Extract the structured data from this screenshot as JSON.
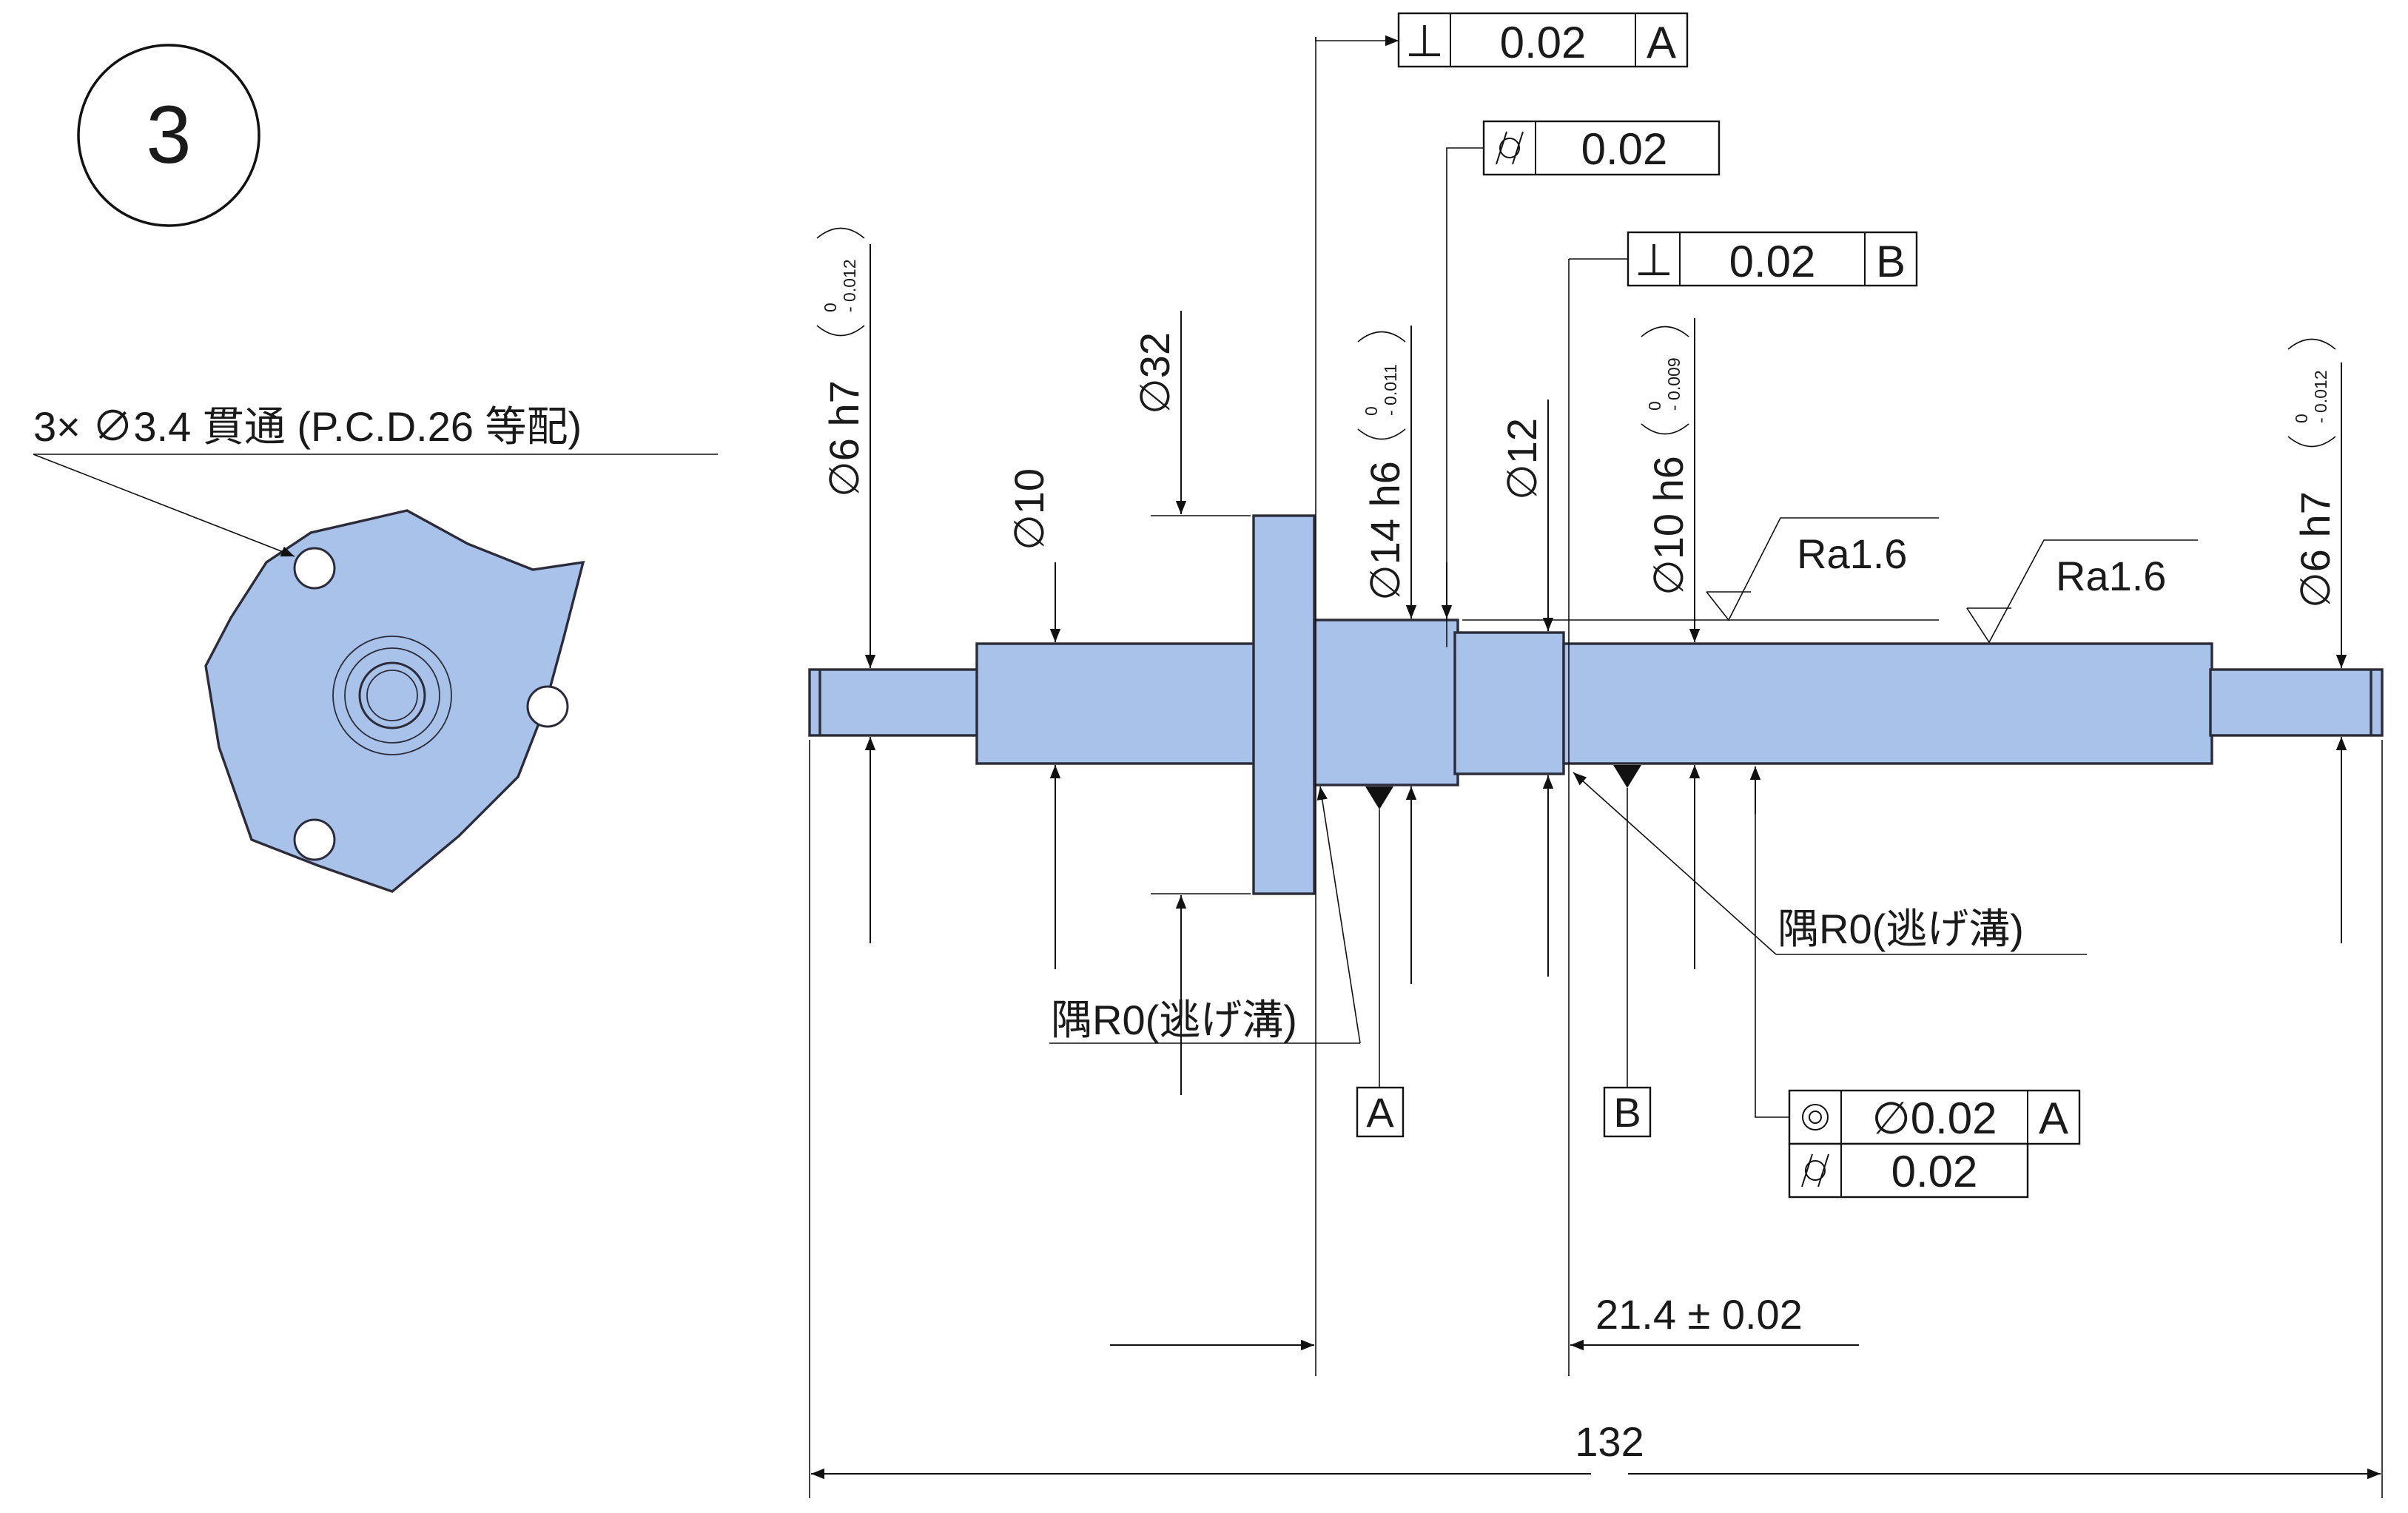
{
  "view_number": "3",
  "front_view": {
    "hole_note": "3× ∅3.4 貫通 (P.C.D.26 等配)"
  },
  "dimensions": {
    "d6_left": "∅6 h7",
    "d6_left_tol_upper": "0",
    "d6_left_tol_lower": "- 0.012",
    "d10": "∅10",
    "d32": "∅32",
    "d14": "∅14 h6",
    "d14_tol_upper": "0",
    "d14_tol_lower": "- 0.011",
    "d12": "∅12",
    "d10b": "∅10 h6",
    "d10b_tol_upper": "0",
    "d10b_tol_lower": "- 0.009",
    "d6_right": "∅6 h7",
    "d6_right_tol_upper": "0",
    "d6_right_tol_lower": "- 0.012",
    "spacing": "21.4 ± 0.02",
    "total_length": "132"
  },
  "roughness": [
    {
      "value": "Ra1.6"
    },
    {
      "value": "Ra1.6"
    }
  ],
  "notes": {
    "relief_left": "隅R0(逃げ溝)",
    "relief_right": "隅R0(逃げ溝)"
  },
  "datums": {
    "a": "A",
    "b": "B"
  },
  "feature_control_frames": {
    "perp_a": {
      "symbol": "⊥",
      "tolerance": "0.02",
      "datum": "A"
    },
    "cyl_top": {
      "symbol": "cylindricity",
      "tolerance": "0.02"
    },
    "perp_b": {
      "symbol": "⊥",
      "tolerance": "0.02",
      "datum": "B"
    },
    "conc": {
      "symbol": "◎",
      "tolerance": "∅0.02",
      "datum": "A"
    },
    "cyl_bottom": {
      "symbol": "cylindricity",
      "tolerance": "0.02"
    }
  },
  "colors": {
    "part_fill": "#a9c2ea",
    "part_edge": "#2b2b3a",
    "line": "#111111"
  }
}
